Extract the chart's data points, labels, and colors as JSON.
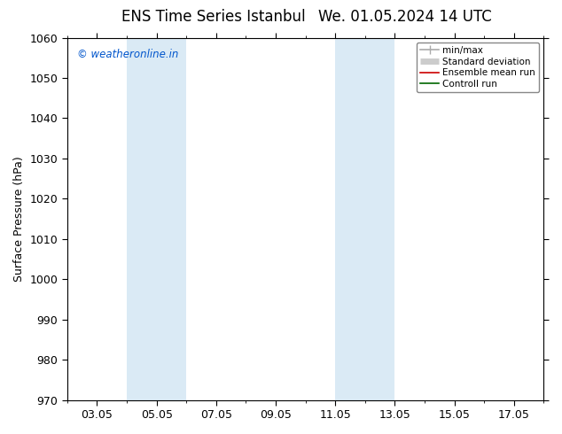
{
  "title_left": "ENS Time Series Istanbul",
  "title_right": "We. 01.05.2024 14 UTC",
  "ylabel": "Surface Pressure (hPa)",
  "ylim": [
    970,
    1060
  ],
  "yticks": [
    970,
    980,
    990,
    1000,
    1010,
    1020,
    1030,
    1040,
    1050,
    1060
  ],
  "xtick_labels": [
    "03.05",
    "05.05",
    "07.05",
    "09.05",
    "11.05",
    "13.05",
    "15.05",
    "17.05"
  ],
  "xtick_positions": [
    3,
    5,
    7,
    9,
    11,
    13,
    15,
    17
  ],
  "xlim": [
    2.0,
    18.0
  ],
  "shaded_bands": [
    {
      "x_start": 4.0,
      "x_end": 6.0,
      "color": "#daeaf5"
    },
    {
      "x_start": 11.0,
      "x_end": 13.0,
      "color": "#daeaf5"
    }
  ],
  "watermark_text": "© weatheronline.in",
  "watermark_color": "#0055cc",
  "legend_entries": [
    {
      "label": "min/max",
      "color": "#aaaaaa",
      "lw": 1.2
    },
    {
      "label": "Standard deviation",
      "color": "#cccccc",
      "lw": 5
    },
    {
      "label": "Ensemble mean run",
      "color": "#cc0000",
      "lw": 1.2
    },
    {
      "label": "Controll run",
      "color": "#006600",
      "lw": 1.2
    }
  ],
  "background_color": "#ffffff",
  "plot_bg_color": "#ffffff",
  "title_fontsize": 12,
  "label_fontsize": 9,
  "tick_fontsize": 9
}
